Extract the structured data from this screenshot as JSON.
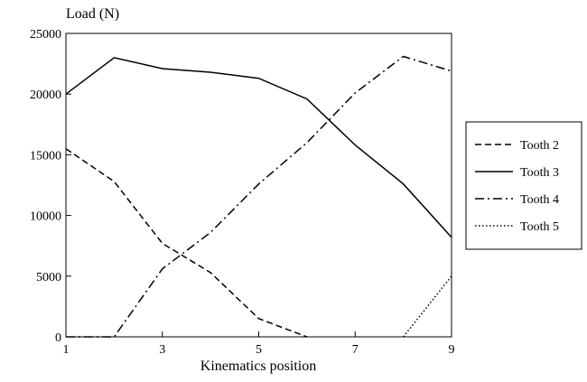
{
  "chart_data": {
    "type": "line",
    "title": "",
    "ylabel": "Load (N)",
    "xlabel": "Kinematics position",
    "xlim": [
      1,
      9
    ],
    "ylim": [
      0,
      25000
    ],
    "xticks": [
      1,
      3,
      5,
      7,
      9
    ],
    "yticks": [
      0,
      5000,
      10000,
      15000,
      20000,
      25000
    ],
    "grid": false,
    "legend_position": "right",
    "series": [
      {
        "name": "Tooth 2",
        "dash": "dashed",
        "points": [
          [
            1,
            15500
          ],
          [
            2,
            12800
          ],
          [
            3,
            7700
          ],
          [
            4,
            5300
          ],
          [
            5,
            1500
          ],
          [
            6,
            0
          ]
        ]
      },
      {
        "name": "Tooth 3",
        "dash": "solid",
        "points": [
          [
            1,
            20000
          ],
          [
            2,
            23000
          ],
          [
            3,
            22100
          ],
          [
            4,
            21800
          ],
          [
            5,
            21300
          ],
          [
            6,
            19600
          ],
          [
            7,
            15800
          ],
          [
            8,
            12600
          ],
          [
            9,
            8200
          ]
        ]
      },
      {
        "name": "Tooth 4",
        "dash": "dash-dot",
        "points": [
          [
            1,
            0
          ],
          [
            2,
            0
          ],
          [
            3,
            5600
          ],
          [
            4,
            8600
          ],
          [
            5,
            12600
          ],
          [
            6,
            16000
          ],
          [
            7,
            20100
          ],
          [
            8,
            23100
          ],
          [
            9,
            21900
          ]
        ]
      },
      {
        "name": "Tooth 5",
        "dash": "dotted",
        "points": [
          [
            8,
            0
          ],
          [
            9,
            5000
          ]
        ]
      }
    ]
  }
}
